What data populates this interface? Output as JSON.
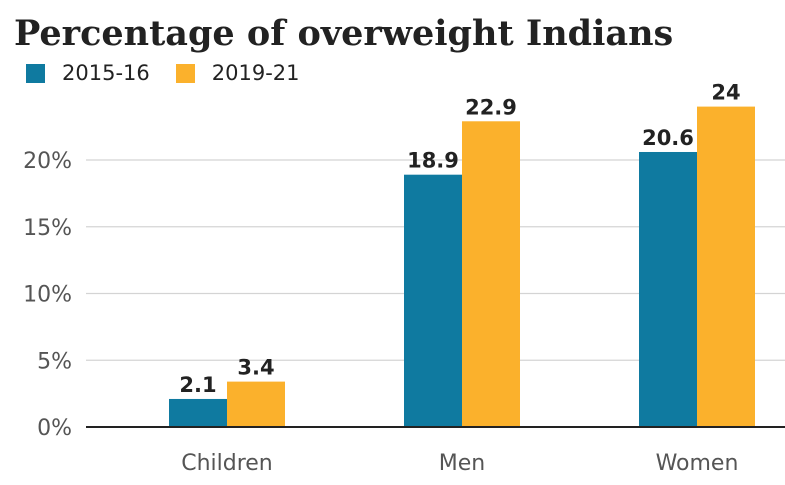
{
  "chart_data": {
    "type": "bar",
    "title": "Percentage of overweight Indians",
    "categories": [
      "Children",
      "Men",
      "Women"
    ],
    "series": [
      {
        "name": "2015-16",
        "values": [
          2.1,
          18.9,
          20.6
        ],
        "labels": [
          "2.1",
          "18.9",
          "20.6"
        ],
        "color": "#0f7aa0"
      },
      {
        "name": "2019-21",
        "values": [
          3.4,
          22.9,
          24
        ],
        "labels": [
          "3.4",
          "22.9",
          "24"
        ],
        "color": "#fbb12c"
      }
    ],
    "y_ticks": [
      0,
      5,
      10,
      15,
      20
    ],
    "y_tick_labels": [
      "0%",
      "5%",
      "10%",
      "15%",
      "20%"
    ],
    "ylim": [
      0,
      24
    ],
    "xlabel": "",
    "ylabel": "",
    "grid": true,
    "legend_position": "top-left"
  }
}
